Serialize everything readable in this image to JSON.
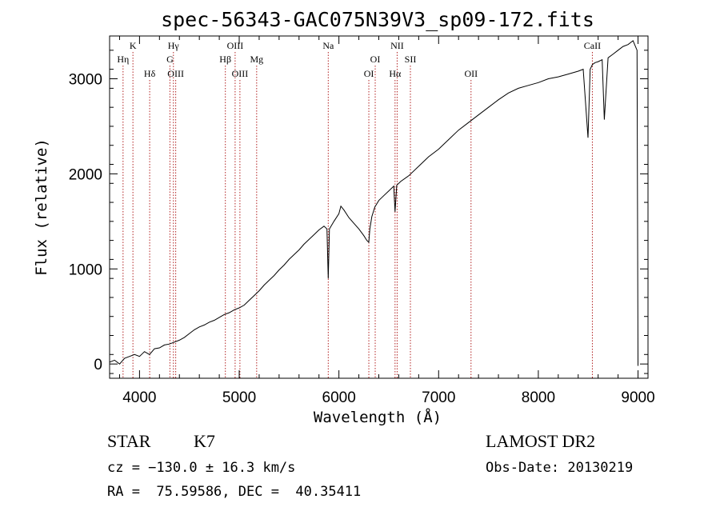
{
  "chart_data": {
    "type": "line",
    "title": "spec-56343-GAC075N39V3_sp09-172.fits",
    "xlabel": "Wavelength (Å)",
    "ylabel": "Flux (relative)",
    "xlim": [
      3700,
      9100
    ],
    "ylim": [
      -150,
      3450
    ],
    "xticks": [
      4000,
      5000,
      6000,
      7000,
      8000,
      9000
    ],
    "xtick_labels": [
      "4000",
      "5000",
      "6000",
      "7000",
      "8000",
      "9000"
    ],
    "yticks": [
      0,
      1000,
      2000,
      3000
    ],
    "ytick_labels": [
      "0",
      "1000",
      "2000",
      "3000"
    ],
    "grid": false,
    "line_color": "#000000",
    "marker_color": "#b22222",
    "series": [
      {
        "x": [
          3700,
          3750,
          3800,
          3850,
          3900,
          3950,
          4000,
          4050,
          4100,
          4150,
          4200,
          4250,
          4300,
          4350,
          4400,
          4450,
          4500,
          4550,
          4600,
          4650,
          4700,
          4750,
          4800,
          4850,
          4900,
          4950,
          5000,
          5050,
          5100,
          5150,
          5200,
          5250,
          5300,
          5350,
          5400,
          5450,
          5500,
          5550,
          5600,
          5650,
          5700,
          5750,
          5800,
          5850,
          5880,
          5893,
          5905,
          5950,
          6000,
          6020,
          6050,
          6100,
          6150,
          6200,
          6250,
          6280,
          6300,
          6310,
          6330,
          6360,
          6400,
          6450,
          6500,
          6550,
          6563,
          6580,
          6620,
          6700,
          6800,
          6900,
          7000,
          7100,
          7200,
          7300,
          7400,
          7500,
          7600,
          7700,
          7800,
          7900,
          8000,
          8100,
          8200,
          8300,
          8400,
          8450,
          8498,
          8520,
          8542,
          8570,
          8600,
          8640,
          8662,
          8700,
          8750,
          8800,
          8850,
          8900,
          8950,
          8990,
          9000
        ],
        "y": [
          20,
          40,
          0,
          60,
          80,
          100,
          80,
          130,
          100,
          160,
          170,
          200,
          210,
          230,
          250,
          280,
          320,
          360,
          390,
          410,
          440,
          460,
          490,
          520,
          540,
          570,
          590,
          620,
          670,
          720,
          770,
          830,
          880,
          930,
          990,
          1040,
          1100,
          1150,
          1200,
          1260,
          1310,
          1360,
          1410,
          1450,
          1420,
          900,
          1420,
          1500,
          1580,
          1660,
          1620,
          1540,
          1480,
          1420,
          1350,
          1300,
          1280,
          1420,
          1550,
          1650,
          1720,
          1770,
          1820,
          1870,
          1600,
          1880,
          1920,
          1980,
          2080,
          2180,
          2260,
          2360,
          2460,
          2540,
          2620,
          2700,
          2780,
          2850,
          2900,
          2930,
          2960,
          3000,
          3020,
          3050,
          3080,
          3100,
          2380,
          3100,
          3150,
          3170,
          3180,
          3200,
          2570,
          3220,
          3260,
          3300,
          3340,
          3360,
          3400,
          3300,
          -20
        ]
      }
    ],
    "lines": [
      {
        "label": "Hη",
        "x": 3835,
        "row": 2
      },
      {
        "label": "K",
        "x": 3934,
        "row": 1
      },
      {
        "label": "Hδ",
        "x": 4102,
        "row": 3
      },
      {
        "label": "Hγ",
        "x": 4340,
        "row": 1
      },
      {
        "label": "G",
        "x": 4305,
        "row": 2
      },
      {
        "label": "OIII",
        "x": 4363,
        "row": 3
      },
      {
        "label": "OIII",
        "x": 4959,
        "row": 1
      },
      {
        "label": "Hβ",
        "x": 4861,
        "row": 2
      },
      {
        "label": "OIII",
        "x": 5007,
        "row": 3
      },
      {
        "label": "Mg",
        "x": 5175,
        "row": 2
      },
      {
        "label": "Na",
        "x": 5893,
        "row": 1
      },
      {
        "label": "OI",
        "x": 6364,
        "row": 2
      },
      {
        "label": "OI",
        "x": 6300,
        "row": 3
      },
      {
        "label": "NII",
        "x": 6584,
        "row": 1
      },
      {
        "label": "Hα",
        "x": 6563,
        "row": 3
      },
      {
        "label": "SII",
        "x": 6717,
        "row": 2
      },
      {
        "label": "OII",
        "x": 7325,
        "row": 3
      },
      {
        "label": "CaII",
        "x": 8542,
        "row": 1
      }
    ]
  },
  "info": {
    "class": "STAR",
    "subclass": "K7",
    "survey": "LAMOST DR2",
    "cz": "cz = −130.0 ± 16.3 km/s",
    "obsdate": "Obs-Date: 20130219",
    "radec": "RA =  75.59586, DEC =  40.35411"
  }
}
